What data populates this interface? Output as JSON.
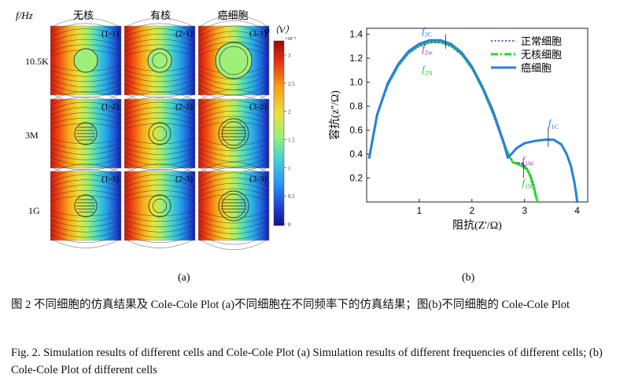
{
  "panel_a": {
    "label": "(a)",
    "freq_axis_label": "f/Hz",
    "columns": [
      "无核",
      "有核",
      "癌细胞"
    ],
    "rows": [
      "10.5K",
      "3M",
      "1G"
    ],
    "cell_labels": [
      [
        "(1-1)",
        "(2-1)",
        "(3-1)"
      ],
      [
        "(1-2)",
        "(2-2)",
        "(3-2)"
      ],
      [
        "(1-3)",
        "(2-3)",
        "(3-3)"
      ]
    ],
    "colorbar": {
      "title": "φ（V）",
      "exponent": "×10⁻³",
      "ticks": [
        "3",
        "2.5",
        "2",
        "1.5",
        "1",
        "0.5",
        "0"
      ]
    }
  },
  "panel_b": {
    "label": "(b)",
    "annotations": {
      "f2c": "f2C",
      "f2w": "f2w",
      "f2n": "f2N",
      "f1c": "f1C",
      "f1w": "f1W",
      "f1n": "f1N"
    }
  },
  "chart_data": {
    "type": "line",
    "xlabel": "阻抗(Z'/Ω)",
    "ylabel": "容抗(z''/Ω)",
    "xlim": [
      0,
      4.2
    ],
    "ylim": [
      0,
      1.45
    ],
    "xticks": [
      "1",
      "2",
      "3",
      "4"
    ],
    "yticks": [
      "0.2",
      "0.4",
      "0.6",
      "0.8",
      "1.0",
      "1.2",
      "1.4"
    ],
    "legend_position": "top-right",
    "series": [
      {
        "name": "正常细胞",
        "style": "dotted",
        "color": "#2222cc",
        "x": [
          0.05,
          0.2,
          0.4,
          0.6,
          0.8,
          1.0,
          1.2,
          1.4,
          1.6,
          1.8,
          2.0,
          2.2,
          2.4,
          2.6,
          2.7,
          2.78,
          2.85,
          2.95,
          3.05,
          3.12,
          3.18,
          3.22,
          3.25
        ],
        "y": [
          0.37,
          0.72,
          0.97,
          1.13,
          1.24,
          1.3,
          1.33,
          1.33,
          1.3,
          1.23,
          1.11,
          0.94,
          0.73,
          0.48,
          0.38,
          0.33,
          0.33,
          0.32,
          0.28,
          0.22,
          0.14,
          0.06,
          0.0
        ]
      },
      {
        "name": "无核细胞",
        "style": "dashdot",
        "color": "#22dd22",
        "x": [
          0.05,
          0.2,
          0.4,
          0.6,
          0.8,
          1.0,
          1.2,
          1.4,
          1.6,
          1.8,
          2.0,
          2.2,
          2.4,
          2.6,
          2.7,
          2.78,
          2.85,
          2.95,
          3.05,
          3.12,
          3.18,
          3.22,
          3.25
        ],
        "y": [
          0.37,
          0.73,
          0.98,
          1.14,
          1.25,
          1.31,
          1.34,
          1.34,
          1.31,
          1.24,
          1.12,
          0.95,
          0.75,
          0.5,
          0.39,
          0.33,
          0.32,
          0.3,
          0.27,
          0.2,
          0.11,
          0.04,
          0.0
        ]
      },
      {
        "name": "癌细胞",
        "style": "solid",
        "color": "#2a7fe0",
        "x": [
          0.05,
          0.2,
          0.4,
          0.6,
          0.8,
          1.0,
          1.2,
          1.4,
          1.6,
          1.8,
          2.0,
          2.2,
          2.4,
          2.6,
          2.68,
          2.75,
          2.85,
          3.0,
          3.2,
          3.4,
          3.55,
          3.7,
          3.8,
          3.88,
          3.94,
          3.98,
          4.0
        ],
        "y": [
          0.37,
          0.73,
          0.99,
          1.15,
          1.26,
          1.32,
          1.35,
          1.35,
          1.32,
          1.25,
          1.13,
          0.96,
          0.76,
          0.5,
          0.37,
          0.4,
          0.45,
          0.49,
          0.51,
          0.52,
          0.52,
          0.48,
          0.4,
          0.3,
          0.18,
          0.07,
          0.0
        ]
      }
    ]
  },
  "caption": {
    "zh": "图 2  不同细胞的仿真结果及 Cole-Cole Plot (a)不同细胞在不同频率下的仿真结果；图(b)不同细胞的 Cole-Cole Plot",
    "en": "Fig. 2. Simulation results of different cells and Cole-Cole Plot (a) Simulation results of different frequencies of different cells; (b) Cole-Cole Plot of different cells"
  }
}
